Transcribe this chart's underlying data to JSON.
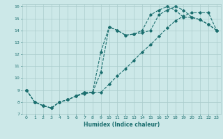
{
  "xlabel": "Humidex (Indice chaleur)",
  "bg_color": "#cce8e8",
  "grid_color": "#aacccc",
  "line_color": "#1a6e6e",
  "xlim": [
    -0.5,
    23.5
  ],
  "ylim": [
    7,
    16.2
  ],
  "xticks": [
    0,
    1,
    2,
    3,
    4,
    5,
    6,
    7,
    8,
    9,
    10,
    11,
    12,
    13,
    14,
    15,
    16,
    17,
    18,
    19,
    20,
    21,
    22,
    23
  ],
  "yticks": [
    7,
    8,
    9,
    10,
    11,
    12,
    13,
    14,
    15,
    16
  ],
  "series1_x": [
    0,
    1,
    2,
    3,
    4,
    5,
    6,
    7,
    8,
    9,
    10,
    11,
    12,
    13,
    14,
    15,
    16,
    17,
    18,
    19,
    20,
    21,
    22,
    23
  ],
  "series1_y": [
    9,
    8,
    7.7,
    7.5,
    8.0,
    8.2,
    8.5,
    8.8,
    8.8,
    10.5,
    14.3,
    14.0,
    13.6,
    13.7,
    13.8,
    14.0,
    15.3,
    15.7,
    16.0,
    15.7,
    15.1,
    14.9,
    14.5,
    14.0
  ],
  "series2_x": [
    0,
    1,
    2,
    3,
    4,
    5,
    6,
    7,
    8,
    9,
    10,
    11,
    12,
    13,
    14,
    15,
    16,
    17,
    18,
    19,
    20,
    21,
    22,
    23
  ],
  "series2_y": [
    9,
    8,
    7.7,
    7.5,
    8.0,
    8.2,
    8.5,
    8.8,
    8.8,
    12.2,
    14.3,
    14.0,
    13.6,
    13.7,
    14.0,
    15.3,
    15.7,
    16.0,
    15.7,
    15.1,
    15.1,
    14.9,
    14.5,
    14.0
  ],
  "series3_x": [
    0,
    1,
    2,
    3,
    4,
    5,
    6,
    7,
    8,
    9,
    10,
    11,
    12,
    13,
    14,
    15,
    16,
    17,
    18,
    19,
    20,
    21,
    22,
    23
  ],
  "series3_y": [
    9,
    8,
    7.7,
    7.5,
    8.0,
    8.2,
    8.5,
    8.7,
    8.8,
    8.8,
    9.5,
    10.2,
    10.8,
    11.5,
    12.2,
    12.8,
    13.5,
    14.2,
    14.8,
    15.2,
    15.5,
    15.5,
    15.5,
    14.0
  ]
}
